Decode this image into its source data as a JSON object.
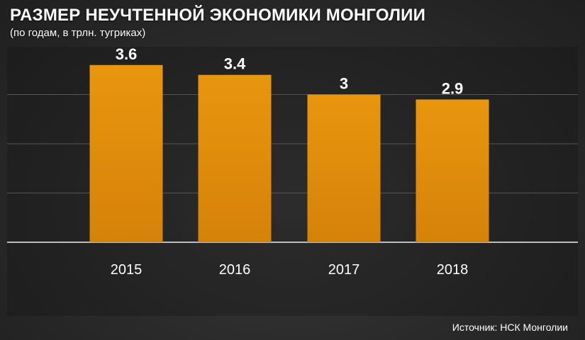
{
  "title": "РАЗМЕР НЕУЧТЕННОЙ ЭКОНОМИКИ МОНГОЛИИ",
  "subtitle": "(по годам, в трлн. тугриках)",
  "source": "Источник: НСК Монголии",
  "colors": {
    "bar_top": "#e8960e",
    "bar_bottom": "#d5820a",
    "gridline": "#555555",
    "baseline": "#bdbdbd",
    "value_label": "#ffffff",
    "tick_label": "#ffffff"
  },
  "chart_data": {
    "type": "bar",
    "categories": [
      "2015",
      "2016",
      "2017",
      "2018"
    ],
    "values": [
      3.6,
      3.4,
      3,
      2.9
    ],
    "value_labels": [
      "3.6",
      "3.4",
      "3",
      "2.9"
    ],
    "title": "РАЗМЕР НЕУЧТЕННОЙ ЭКОНОМИКИ МОНГОЛИИ",
    "subtitle": "(по годам, в трлн. тугриках)",
    "xlabel": "",
    "ylabel": "",
    "ylim": [
      0,
      4
    ],
    "grid": true,
    "legend": "none"
  }
}
